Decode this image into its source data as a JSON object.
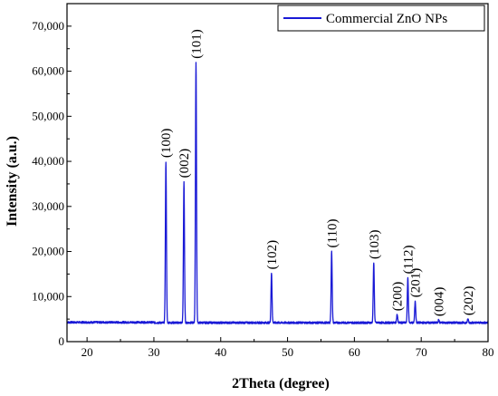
{
  "chart_data": {
    "type": "line",
    "title": "",
    "xlabel": "2Theta (degree)",
    "ylabel": "Intensity (a.u.)",
    "xlim": [
      17,
      80
    ],
    "ylim": [
      0,
      75000
    ],
    "x_ticks": [
      20,
      30,
      40,
      50,
      60,
      70,
      80
    ],
    "x_tick_labels": [
      "20",
      "30",
      "40",
      "50",
      "60",
      "70",
      "80"
    ],
    "y_ticks": [
      0,
      10000,
      20000,
      30000,
      40000,
      50000,
      60000,
      70000
    ],
    "y_tick_labels": [
      "0",
      "10,000",
      "20,000",
      "30,000",
      "40,000",
      "50,000",
      "60,000",
      "70,000"
    ],
    "legend": {
      "position": "top-right",
      "entries": [
        "Commercial ZnO NPs"
      ]
    },
    "series": [
      {
        "name": "Commercial ZnO NPs",
        "color": "#1a1ad6",
        "baseline": 4200,
        "peaks": [
          {
            "x": 31.8,
            "y": 40000
          },
          {
            "x": 34.5,
            "y": 35500
          },
          {
            "x": 36.3,
            "y": 62000
          },
          {
            "x": 47.6,
            "y": 15200
          },
          {
            "x": 56.6,
            "y": 20000
          },
          {
            "x": 62.9,
            "y": 17500
          },
          {
            "x": 66.4,
            "y": 6000
          },
          {
            "x": 68.0,
            "y": 14200
          },
          {
            "x": 69.1,
            "y": 9000
          },
          {
            "x": 72.6,
            "y": 4800
          },
          {
            "x": 77.0,
            "y": 5000
          }
        ]
      }
    ],
    "annotations": [
      {
        "text": "(100)",
        "x": 31.8,
        "y": 40000
      },
      {
        "text": "(002)",
        "x": 34.5,
        "y": 35500
      },
      {
        "text": "(101)",
        "x": 36.3,
        "y": 62000
      },
      {
        "text": "(102)",
        "x": 47.6,
        "y": 15200
      },
      {
        "text": "(110)",
        "x": 56.6,
        "y": 20000
      },
      {
        "text": "(103)",
        "x": 62.9,
        "y": 17500
      },
      {
        "text": "(200)",
        "x": 66.4,
        "y": 6000
      },
      {
        "text": "(112)",
        "x": 68.0,
        "y": 14200
      },
      {
        "text": "(201)",
        "x": 69.1,
        "y": 9000
      },
      {
        "text": "(004)",
        "x": 72.6,
        "y": 4800
      },
      {
        "text": "(202)",
        "x": 77.0,
        "y": 5000
      }
    ]
  }
}
